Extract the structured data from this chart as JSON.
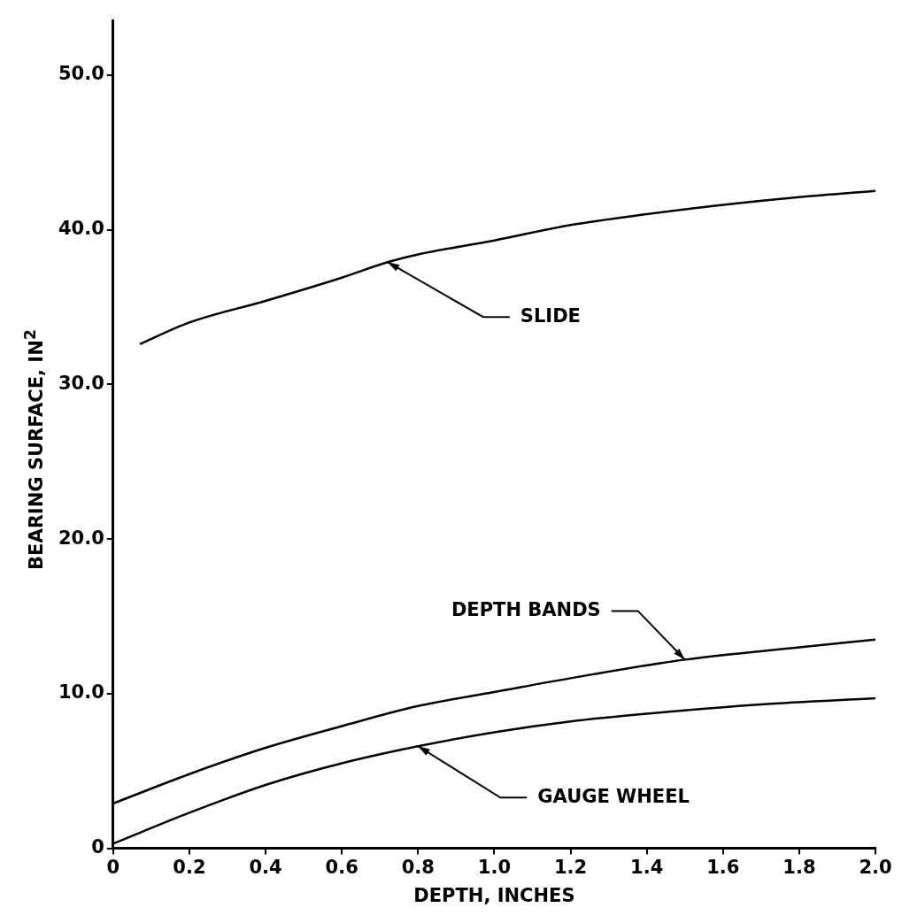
{
  "chart_data": {
    "type": "line",
    "xlabel": "DEPTH, INCHES",
    "ylabel": "BEARING SURFACE, IN$^{2}$",
    "xlim": [
      0,
      2.0
    ],
    "ylim": [
      0,
      53.5
    ],
    "xticks": [
      0,
      0.2,
      0.4,
      0.6,
      0.8,
      {
        "value": 1,
        "label": "1.0"
      },
      1.2,
      1.4,
      1.6,
      1.8,
      {
        "value": 2,
        "label": "2.0"
      }
    ],
    "yticks": [
      0,
      {
        "value": 10,
        "label": "10.0"
      },
      {
        "value": 20,
        "label": "20.0"
      },
      {
        "value": 30,
        "label": "30.0"
      },
      {
        "value": 40,
        "label": "40.0"
      },
      {
        "value": 50,
        "label": "50.0"
      }
    ],
    "grid": false,
    "legend": false,
    "marker": "none",
    "line_style": "solid",
    "series": [
      {
        "color": "#000000",
        "x": [
          0.07,
          0.2,
          0.4,
          0.6,
          0.72,
          0.8,
          1.0,
          1.2,
          1.4,
          1.6,
          1.8,
          2.0
        ],
        "values": [
          32.6,
          34.0,
          35.4,
          36.9,
          37.9,
          38.4,
          39.3,
          40.3,
          41.0,
          41.6,
          42.1,
          42.5
        ]
      },
      {
        "color": "#000000",
        "x": [
          0,
          0.2,
          0.4,
          0.6,
          0.8,
          1.0,
          1.2,
          1.5,
          1.8,
          2.0
        ],
        "values": [
          2.9,
          4.8,
          6.5,
          7.9,
          9.2,
          10.1,
          11.0,
          12.2,
          13.0,
          13.5
        ]
      },
      {
        "color": "#000000",
        "x": [
          0,
          0.2,
          0.4,
          0.6,
          0.8,
          1.0,
          1.2,
          1.4,
          1.7,
          2.0
        ],
        "values": [
          0.3,
          2.3,
          4.1,
          5.5,
          6.6,
          7.5,
          8.2,
          8.7,
          9.3,
          9.7
        ]
      }
    ],
    "annotations": [
      {
        "text": "SLIDE",
        "x": 0.72,
        "y": 37.9
      },
      {
        "text": "DEPTH BANDS",
        "x": 1.5,
        "y": 12.2
      },
      {
        "text": "GAUGE WHEEL",
        "x": 0.8,
        "y": 6.6
      }
    ]
  }
}
